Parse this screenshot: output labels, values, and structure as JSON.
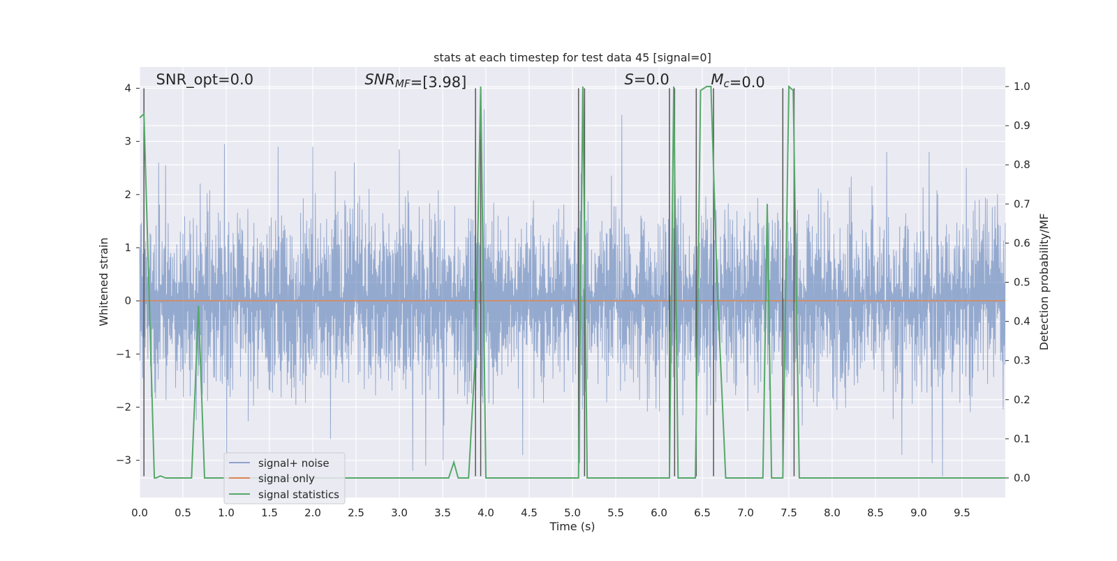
{
  "chart_data": {
    "type": "line",
    "title": "stats at each timestep for test data 45 [signal=0]",
    "xlabel": "Time (s)",
    "ylabel_left": "Whitened strain",
    "ylabel_right": "Detection probability/MF",
    "xlim": [
      0.0,
      10.0
    ],
    "ylim_left": [
      -3.7,
      4.4
    ],
    "ylim_right": [
      -0.05,
      1.05
    ],
    "x_ticks": [
      0.0,
      0.5,
      1.0,
      1.5,
      2.0,
      2.5,
      3.0,
      3.5,
      4.0,
      4.5,
      5.0,
      5.5,
      6.0,
      6.5,
      7.0,
      7.5,
      8.0,
      8.5,
      9.0,
      9.5
    ],
    "x_tick_labels": [
      "0.0",
      "0.5",
      "1.0",
      "1.5",
      "2.0",
      "2.5",
      "3.0",
      "3.5",
      "4.0",
      "4.5",
      "5.0",
      "5.5",
      "6.0",
      "6.5",
      "7.0",
      "7.5",
      "8.0",
      "8.5",
      "9.0",
      "9.5"
    ],
    "y_ticks_left": [
      -3,
      -2,
      -1,
      0,
      1,
      2,
      3,
      4
    ],
    "y_tick_labels_left": [
      "−3",
      "−2",
      "−1",
      "0",
      "1",
      "2",
      "3",
      "4"
    ],
    "y_ticks_right": [
      0.0,
      0.1,
      0.2,
      0.3,
      0.4,
      0.5,
      0.6,
      0.7,
      0.8,
      0.9,
      1.0
    ],
    "y_tick_labels_right": [
      "0.0",
      "0.1",
      "0.2",
      "0.3",
      "0.4",
      "0.5",
      "0.6",
      "0.7",
      "0.8",
      "0.9",
      "1.0"
    ],
    "grid": true,
    "legend_position": "lower-left",
    "annotations": [
      {
        "parts": [
          {
            "text": "SNR_opt=0.0",
            "italic": false
          }
        ],
        "x": 0.19
      },
      {
        "parts": [
          {
            "text": "SNR",
            "italic": true
          },
          {
            "text": "MF",
            "italic": true,
            "sub": true
          },
          {
            "text": "=[3.98]",
            "italic": false
          }
        ],
        "x": 2.6
      },
      {
        "parts": [
          {
            "text": "S",
            "italic": true
          },
          {
            "text": "=0.0",
            "italic": false
          }
        ],
        "x": 5.6
      },
      {
        "parts": [
          {
            "text": "M",
            "italic": true
          },
          {
            "text": "c",
            "italic": true,
            "sub": true
          },
          {
            "text": "=0.0",
            "italic": false
          }
        ],
        "x": 6.6
      }
    ],
    "series": [
      {
        "name": "signal+ noise",
        "color": "#4c72b0",
        "alpha": 0.55,
        "axis": "left",
        "kind": "noise",
        "amplitude_envelope": [
          1.8,
          2.6
        ],
        "spikes": [
          {
            "x": 0.05,
            "y": 2.0
          },
          {
            "x": 0.22,
            "y": 2.6
          },
          {
            "x": 0.3,
            "y": 2.55
          },
          {
            "x": 0.98,
            "y": 2.95
          },
          {
            "x": 1.6,
            "y": 2.55
          },
          {
            "x": 1.6,
            "y": 2.9
          },
          {
            "x": 2.0,
            "y": 2.9
          },
          {
            "x": 2.48,
            "y": 2.6
          },
          {
            "x": 3.0,
            "y": 2.85
          },
          {
            "x": 3.98,
            "y": 3.6
          },
          {
            "x": 5.1,
            "y": 2.4
          },
          {
            "x": 5.57,
            "y": 3.5
          },
          {
            "x": 8.63,
            "y": 2.8
          },
          {
            "x": 9.12,
            "y": 2.8
          },
          {
            "x": 9.55,
            "y": 2.5
          },
          {
            "x": 1.0,
            "y": -3.2
          },
          {
            "x": 3.15,
            "y": -3.2
          },
          {
            "x": 3.3,
            "y": -3.1
          },
          {
            "x": 3.5,
            "y": -3.0
          },
          {
            "x": 5.08,
            "y": -3.05
          },
          {
            "x": 9.15,
            "y": -3.05
          },
          {
            "x": 9.27,
            "y": -3.3
          },
          {
            "x": 2.2,
            "y": -2.6
          },
          {
            "x": 4.42,
            "y": -2.9
          },
          {
            "x": 8.8,
            "y": -2.9
          }
        ]
      },
      {
        "name": "signal only",
        "color": "#dd8452",
        "axis": "left",
        "x": [
          0.0,
          10.0
        ],
        "y": [
          0.0,
          0.0
        ]
      },
      {
        "name": "signal statistics",
        "color": "#55a868",
        "axis": "right",
        "x": [
          0.0,
          0.05,
          0.17,
          0.19,
          0.24,
          0.3,
          0.6,
          0.68,
          0.75,
          3.57,
          3.63,
          3.68,
          3.8,
          3.88,
          3.94,
          4.0,
          4.05,
          5.07,
          5.12,
          5.17,
          6.12,
          6.17,
          6.22,
          6.42,
          6.48,
          6.55,
          6.6,
          6.67,
          6.77,
          7.2,
          7.25,
          7.3,
          7.37,
          7.43,
          7.5,
          7.55,
          7.62,
          10.0
        ],
        "y": [
          0.92,
          0.93,
          0.0,
          0.0,
          0.005,
          0.0,
          0.0,
          0.44,
          0.0,
          0.0,
          0.04,
          0.0,
          0.0,
          0.32,
          1.0,
          0.0,
          0.0,
          0.0,
          1.0,
          0.0,
          0.0,
          1.0,
          0.0,
          0.0,
          0.99,
          1.0,
          1.0,
          0.5,
          0.0,
          0.0,
          0.7,
          0.0,
          0.0,
          0.0,
          1.0,
          0.99,
          0.0,
          0.0
        ]
      }
    ],
    "event_lines": {
      "color": "#555555",
      "x": [
        0.05,
        3.88,
        3.94,
        5.07,
        5.14,
        6.12,
        6.18,
        6.43,
        6.63,
        7.43,
        7.56
      ],
      "y_range_left": [
        -3.3,
        4.0
      ]
    }
  }
}
